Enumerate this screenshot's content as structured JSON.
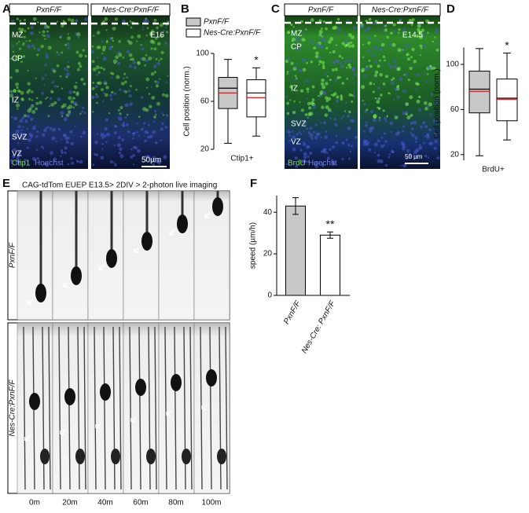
{
  "panel_labels": [
    "A",
    "B",
    "C",
    "D",
    "E",
    "F"
  ],
  "panel_a": {
    "headers": [
      "PxnF/F",
      "Nes-Cre:PxnF/F"
    ],
    "zones": [
      "MZ",
      "CP",
      "IZ",
      "SVZ",
      "VZ"
    ],
    "stage": "E16",
    "stains": [
      "Ctip1",
      "Hoechst"
    ],
    "scale_bar": "50µm"
  },
  "panel_c": {
    "headers": [
      "PxnF/F",
      "Nes-Cre:PxnF/F"
    ],
    "zones": [
      "MZ",
      "CP",
      "IZ",
      "SVZ",
      "VZ"
    ],
    "stage": "E14.5",
    "stains": [
      "BrdU",
      "Hoechst"
    ],
    "scale_bar": "50 µm"
  },
  "panel_e": {
    "caption": "CAG-tdTom EUEP E13.5> 2DIV > 2-photon live imaging",
    "rows": [
      "PxnF/F",
      "Nes-Cre:PxnF/F"
    ],
    "times": [
      "0m",
      "20m",
      "40m",
      "60m",
      "80m",
      "100m"
    ]
  },
  "chart_data": [
    {
      "type": "box",
      "ylabel": "Cell position (norm.)",
      "category": "Ctip1+",
      "ylim": [
        20,
        100
      ],
      "yticks": [
        20,
        60,
        100
      ],
      "mean_color": "#e0282c",
      "series": [
        {
          "name": "PxnF/F",
          "color": "#c8c8c8",
          "min": 25,
          "q1": 54,
          "median": 71,
          "mean": 67,
          "q3": 80,
          "max": 95
        },
        {
          "name": "Nes-Cre:PxnF/F",
          "color": "#ffffff",
          "min": 31,
          "q1": 47,
          "median": 67,
          "mean": 63,
          "q3": 78,
          "max": 88,
          "annotation": "*"
        }
      ]
    },
    {
      "type": "box",
      "ylabel": "Cell position (norm.)",
      "category": "BrdU+",
      "ylim": [
        15,
        115
      ],
      "yticks": [
        20,
        60,
        100
      ],
      "mean_color": "#e0282c",
      "series": [
        {
          "color": "#c8c8c8",
          "min": 19,
          "q1": 57,
          "median": 78,
          "mean": 76,
          "q3": 94,
          "max": 114
        },
        {
          "color": "#ffffff",
          "min": 33,
          "q1": 50,
          "median": 70,
          "mean": 69,
          "q3": 87,
          "max": 110,
          "annotation": "*"
        }
      ]
    },
    {
      "type": "bar",
      "ylabel": "speed (µm/h)",
      "categories": [
        "PxnF/F",
        "Nes-Cre: PxnF/F"
      ],
      "values": [
        43,
        29
      ],
      "errors": [
        4,
        1.5
      ],
      "colors": [
        "#c8c8c8",
        "#ffffff"
      ],
      "annotations": [
        null,
        "**"
      ],
      "ylim": [
        0,
        48
      ],
      "yticks": [
        0,
        20,
        40
      ]
    }
  ]
}
